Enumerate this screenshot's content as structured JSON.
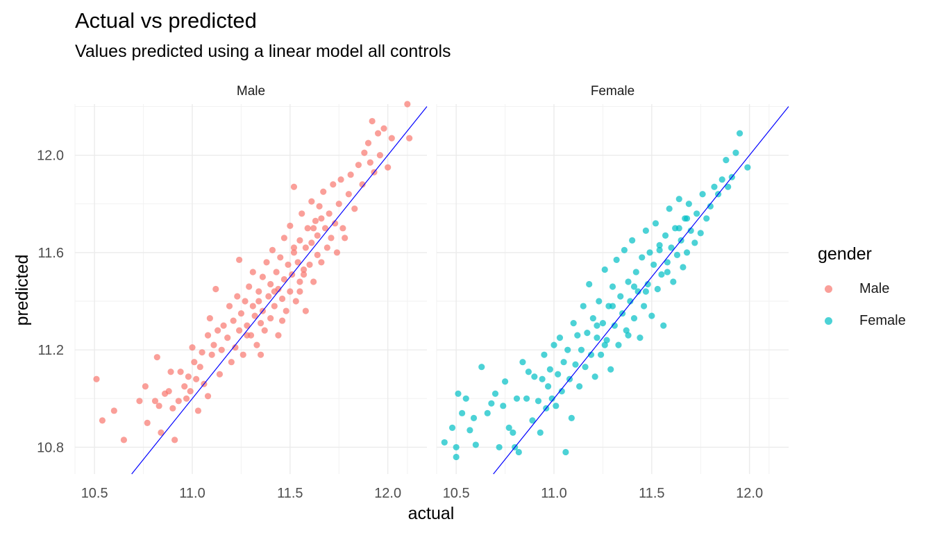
{
  "chart_data": {
    "type": "scatter",
    "title": "Actual vs predicted",
    "subtitle": "Values predicted using a linear model all controls",
    "xlabel": "actual",
    "ylabel": "predicted",
    "xlim": [
      10.4,
      12.2
    ],
    "ylim": [
      10.69,
      12.21
    ],
    "x_ticks": [
      "10.5",
      "11.0",
      "11.5",
      "12.0"
    ],
    "y_ticks": [
      "10.8",
      "11.2",
      "11.6",
      "12.0"
    ],
    "grid": true,
    "reference_line": {
      "type": "identity",
      "slope": 1,
      "intercept": 0,
      "color": "#0000ff"
    },
    "legend": {
      "title": "gender",
      "position": "right",
      "entries": [
        {
          "label": "Male",
          "color": "#F8766D"
        },
        {
          "label": "Female",
          "color": "#00BFC4"
        }
      ]
    },
    "facets": [
      {
        "label": "Male",
        "color": "#F8766D",
        "points": [
          [
            10.51,
            11.08
          ],
          [
            10.54,
            10.91
          ],
          [
            10.6,
            10.95
          ],
          [
            10.65,
            10.83
          ],
          [
            10.73,
            10.99
          ],
          [
            10.76,
            11.05
          ],
          [
            10.77,
            10.9
          ],
          [
            10.81,
            10.99
          ],
          [
            10.82,
            11.17
          ],
          [
            10.83,
            10.97
          ],
          [
            10.84,
            10.86
          ],
          [
            10.86,
            11.02
          ],
          [
            10.88,
            11.03
          ],
          [
            10.89,
            11.11
          ],
          [
            10.9,
            10.96
          ],
          [
            10.91,
            10.83
          ],
          [
            10.93,
            10.99
          ],
          [
            10.94,
            11.11
          ],
          [
            10.96,
            11.05
          ],
          [
            10.97,
            11.0
          ],
          [
            10.98,
            11.09
          ],
          [
            10.99,
            11.03
          ],
          [
            11.0,
            11.21
          ],
          [
            11.01,
            11.15
          ],
          [
            11.02,
            11.08
          ],
          [
            11.03,
            10.95
          ],
          [
            11.04,
            11.13
          ],
          [
            11.05,
            11.19
          ],
          [
            11.06,
            11.06
          ],
          [
            11.08,
            11.01
          ],
          [
            11.08,
            11.26
          ],
          [
            11.09,
            11.33
          ],
          [
            11.1,
            11.18
          ],
          [
            11.11,
            11.22
          ],
          [
            11.12,
            11.45
          ],
          [
            11.13,
            11.28
          ],
          [
            11.14,
            11.1
          ],
          [
            11.15,
            11.2
          ],
          [
            11.16,
            11.3
          ],
          [
            11.18,
            11.25
          ],
          [
            11.19,
            11.38
          ],
          [
            11.2,
            11.15
          ],
          [
            11.21,
            11.32
          ],
          [
            11.22,
            11.21
          ],
          [
            11.23,
            11.42
          ],
          [
            11.24,
            11.28
          ],
          [
            11.24,
            11.57
          ],
          [
            11.25,
            11.35
          ],
          [
            11.26,
            11.18
          ],
          [
            11.27,
            11.4
          ],
          [
            11.28,
            11.3
          ],
          [
            11.29,
            11.46
          ],
          [
            11.3,
            11.26
          ],
          [
            11.31,
            11.38
          ],
          [
            11.31,
            11.52
          ],
          [
            11.32,
            11.34
          ],
          [
            11.33,
            11.22
          ],
          [
            11.34,
            11.44
          ],
          [
            11.35,
            11.31
          ],
          [
            11.36,
            11.5
          ],
          [
            11.36,
            11.36
          ],
          [
            11.37,
            11.28
          ],
          [
            11.38,
            11.56
          ],
          [
            11.39,
            11.42
          ],
          [
            11.4,
            11.33
          ],
          [
            11.4,
            11.47
          ],
          [
            11.41,
            11.61
          ],
          [
            11.42,
            11.38
          ],
          [
            11.43,
            11.52
          ],
          [
            11.44,
            11.26
          ],
          [
            11.44,
            11.45
          ],
          [
            11.45,
            11.58
          ],
          [
            11.46,
            11.41
          ],
          [
            11.47,
            11.66
          ],
          [
            11.47,
            11.49
          ],
          [
            11.48,
            11.36
          ],
          [
            11.49,
            11.55
          ],
          [
            11.5,
            11.44
          ],
          [
            11.5,
            11.71
          ],
          [
            11.51,
            11.51
          ],
          [
            11.52,
            11.6
          ],
          [
            11.52,
            11.87
          ],
          [
            11.53,
            11.4
          ],
          [
            11.54,
            11.56
          ],
          [
            11.55,
            11.48
          ],
          [
            11.55,
            11.65
          ],
          [
            11.56,
            11.76
          ],
          [
            11.57,
            11.53
          ],
          [
            11.58,
            11.62
          ],
          [
            11.58,
            11.36
          ],
          [
            11.59,
            11.7
          ],
          [
            11.6,
            11.55
          ],
          [
            11.61,
            11.81
          ],
          [
            11.61,
            11.64
          ],
          [
            11.62,
            11.48
          ],
          [
            11.63,
            11.73
          ],
          [
            11.64,
            11.59
          ],
          [
            11.64,
            11.67
          ],
          [
            11.65,
            11.79
          ],
          [
            11.66,
            11.56
          ],
          [
            11.67,
            11.85
          ],
          [
            11.68,
            11.7
          ],
          [
            11.69,
            11.62
          ],
          [
            11.7,
            11.76
          ],
          [
            11.71,
            11.66
          ],
          [
            11.72,
            11.88
          ],
          [
            11.73,
            11.72
          ],
          [
            11.74,
            11.6
          ],
          [
            11.75,
            11.8
          ],
          [
            11.76,
            11.9
          ],
          [
            11.77,
            11.7
          ],
          [
            11.78,
            11.66
          ],
          [
            11.8,
            11.84
          ],
          [
            11.81,
            11.92
          ],
          [
            11.83,
            11.78
          ],
          [
            11.85,
            11.96
          ],
          [
            11.87,
            11.88
          ],
          [
            11.88,
            12.01
          ],
          [
            11.9,
            12.05
          ],
          [
            11.91,
            11.97
          ],
          [
            11.92,
            12.14
          ],
          [
            11.93,
            11.93
          ],
          [
            11.95,
            12.09
          ],
          [
            11.96,
            12.0
          ],
          [
            11.98,
            12.11
          ],
          [
            12.0,
            11.95
          ],
          [
            12.02,
            12.07
          ],
          [
            12.1,
            12.21
          ],
          [
            12.11,
            12.07
          ],
          [
            11.35,
            11.18
          ],
          [
            11.55,
            11.44
          ],
          [
            11.62,
            11.7
          ],
          [
            11.46,
            11.32
          ],
          [
            11.28,
            11.26
          ],
          [
            11.52,
            11.62
          ],
          [
            11.42,
            11.44
          ],
          [
            11.66,
            11.74
          ],
          [
            11.34,
            11.4
          ],
          [
            11.57,
            11.51
          ]
        ]
      },
      {
        "label": "Female",
        "color": "#00BFC4",
        "points": [
          [
            10.44,
            10.82
          ],
          [
            10.48,
            10.88
          ],
          [
            10.5,
            10.76
          ],
          [
            10.5,
            10.8
          ],
          [
            10.51,
            11.02
          ],
          [
            10.53,
            10.94
          ],
          [
            10.55,
            11.0
          ],
          [
            10.57,
            10.87
          ],
          [
            10.59,
            10.92
          ],
          [
            10.6,
            10.81
          ],
          [
            10.63,
            11.13
          ],
          [
            10.66,
            10.94
          ],
          [
            10.68,
            10.98
          ],
          [
            10.7,
            11.02
          ],
          [
            10.72,
            10.8
          ],
          [
            10.74,
            10.97
          ],
          [
            10.75,
            11.07
          ],
          [
            10.77,
            10.88
          ],
          [
            10.79,
            10.86
          ],
          [
            10.8,
            10.8
          ],
          [
            10.81,
            11.0
          ],
          [
            10.82,
            10.78
          ],
          [
            10.84,
            11.15
          ],
          [
            10.86,
            11.0
          ],
          [
            10.87,
            11.11
          ],
          [
            10.89,
            10.91
          ],
          [
            10.9,
            11.09
          ],
          [
            10.92,
            10.99
          ],
          [
            10.93,
            10.86
          ],
          [
            10.94,
            11.08
          ],
          [
            10.95,
            11.18
          ],
          [
            10.96,
            10.96
          ],
          [
            10.97,
            11.05
          ],
          [
            10.98,
            11.12
          ],
          [
            10.99,
            11.0
          ],
          [
            11.0,
            11.22
          ],
          [
            11.01,
            10.97
          ],
          [
            11.02,
            11.1
          ],
          [
            11.03,
            11.25
          ],
          [
            11.04,
            11.03
          ],
          [
            11.05,
            11.15
          ],
          [
            11.06,
            10.78
          ],
          [
            11.07,
            11.2
          ],
          [
            11.08,
            11.08
          ],
          [
            11.09,
            10.92
          ],
          [
            11.1,
            11.31
          ],
          [
            11.11,
            11.14
          ],
          [
            11.12,
            11.26
          ],
          [
            11.13,
            11.05
          ],
          [
            11.14,
            11.2
          ],
          [
            11.15,
            11.38
          ],
          [
            11.16,
            11.13
          ],
          [
            11.17,
            11.27
          ],
          [
            11.18,
            11.47
          ],
          [
            11.19,
            11.18
          ],
          [
            11.2,
            11.33
          ],
          [
            11.21,
            11.09
          ],
          [
            11.22,
            11.25
          ],
          [
            11.23,
            11.4
          ],
          [
            11.24,
            11.18
          ],
          [
            11.25,
            11.31
          ],
          [
            11.26,
            11.53
          ],
          [
            11.27,
            11.24
          ],
          [
            11.28,
            11.38
          ],
          [
            11.29,
            11.12
          ],
          [
            11.3,
            11.46
          ],
          [
            11.31,
            11.3
          ],
          [
            11.32,
            11.57
          ],
          [
            11.33,
            11.22
          ],
          [
            11.34,
            11.42
          ],
          [
            11.35,
            11.35
          ],
          [
            11.36,
            11.61
          ],
          [
            11.37,
            11.28
          ],
          [
            11.38,
            11.48
          ],
          [
            11.39,
            11.4
          ],
          [
            11.4,
            11.65
          ],
          [
            11.41,
            11.33
          ],
          [
            11.42,
            11.52
          ],
          [
            11.43,
            11.44
          ],
          [
            11.44,
            11.25
          ],
          [
            11.45,
            11.58
          ],
          [
            11.46,
            11.38
          ],
          [
            11.47,
            11.69
          ],
          [
            11.48,
            11.47
          ],
          [
            11.49,
            11.6
          ],
          [
            11.5,
            11.34
          ],
          [
            11.51,
            11.55
          ],
          [
            11.52,
            11.72
          ],
          [
            11.53,
            11.45
          ],
          [
            11.54,
            11.63
          ],
          [
            11.55,
            11.51
          ],
          [
            11.56,
            11.3
          ],
          [
            11.57,
            11.67
          ],
          [
            11.58,
            11.56
          ],
          [
            11.59,
            11.78
          ],
          [
            11.6,
            11.62
          ],
          [
            11.61,
            11.48
          ],
          [
            11.62,
            11.7
          ],
          [
            11.63,
            11.59
          ],
          [
            11.64,
            11.82
          ],
          [
            11.65,
            11.65
          ],
          [
            11.66,
            11.54
          ],
          [
            11.67,
            11.74
          ],
          [
            11.68,
            11.6
          ],
          [
            11.69,
            11.8
          ],
          [
            11.7,
            11.69
          ],
          [
            11.72,
            11.64
          ],
          [
            11.73,
            11.76
          ],
          [
            11.75,
            11.68
          ],
          [
            11.76,
            11.84
          ],
          [
            11.78,
            11.74
          ],
          [
            11.8,
            11.79
          ],
          [
            11.82,
            11.87
          ],
          [
            11.84,
            11.84
          ],
          [
            11.86,
            11.9
          ],
          [
            11.88,
            11.98
          ],
          [
            11.89,
            11.87
          ],
          [
            11.91,
            11.91
          ],
          [
            11.93,
            12.01
          ],
          [
            11.95,
            12.09
          ],
          [
            11.99,
            11.95
          ],
          [
            11.38,
            11.26
          ],
          [
            11.58,
            11.52
          ],
          [
            11.3,
            11.38
          ],
          [
            11.47,
            11.44
          ],
          [
            11.22,
            11.3
          ],
          [
            11.64,
            11.7
          ],
          [
            11.41,
            11.46
          ],
          [
            11.54,
            11.61
          ],
          [
            11.26,
            11.22
          ],
          [
            11.68,
            11.74
          ]
        ]
      }
    ]
  }
}
